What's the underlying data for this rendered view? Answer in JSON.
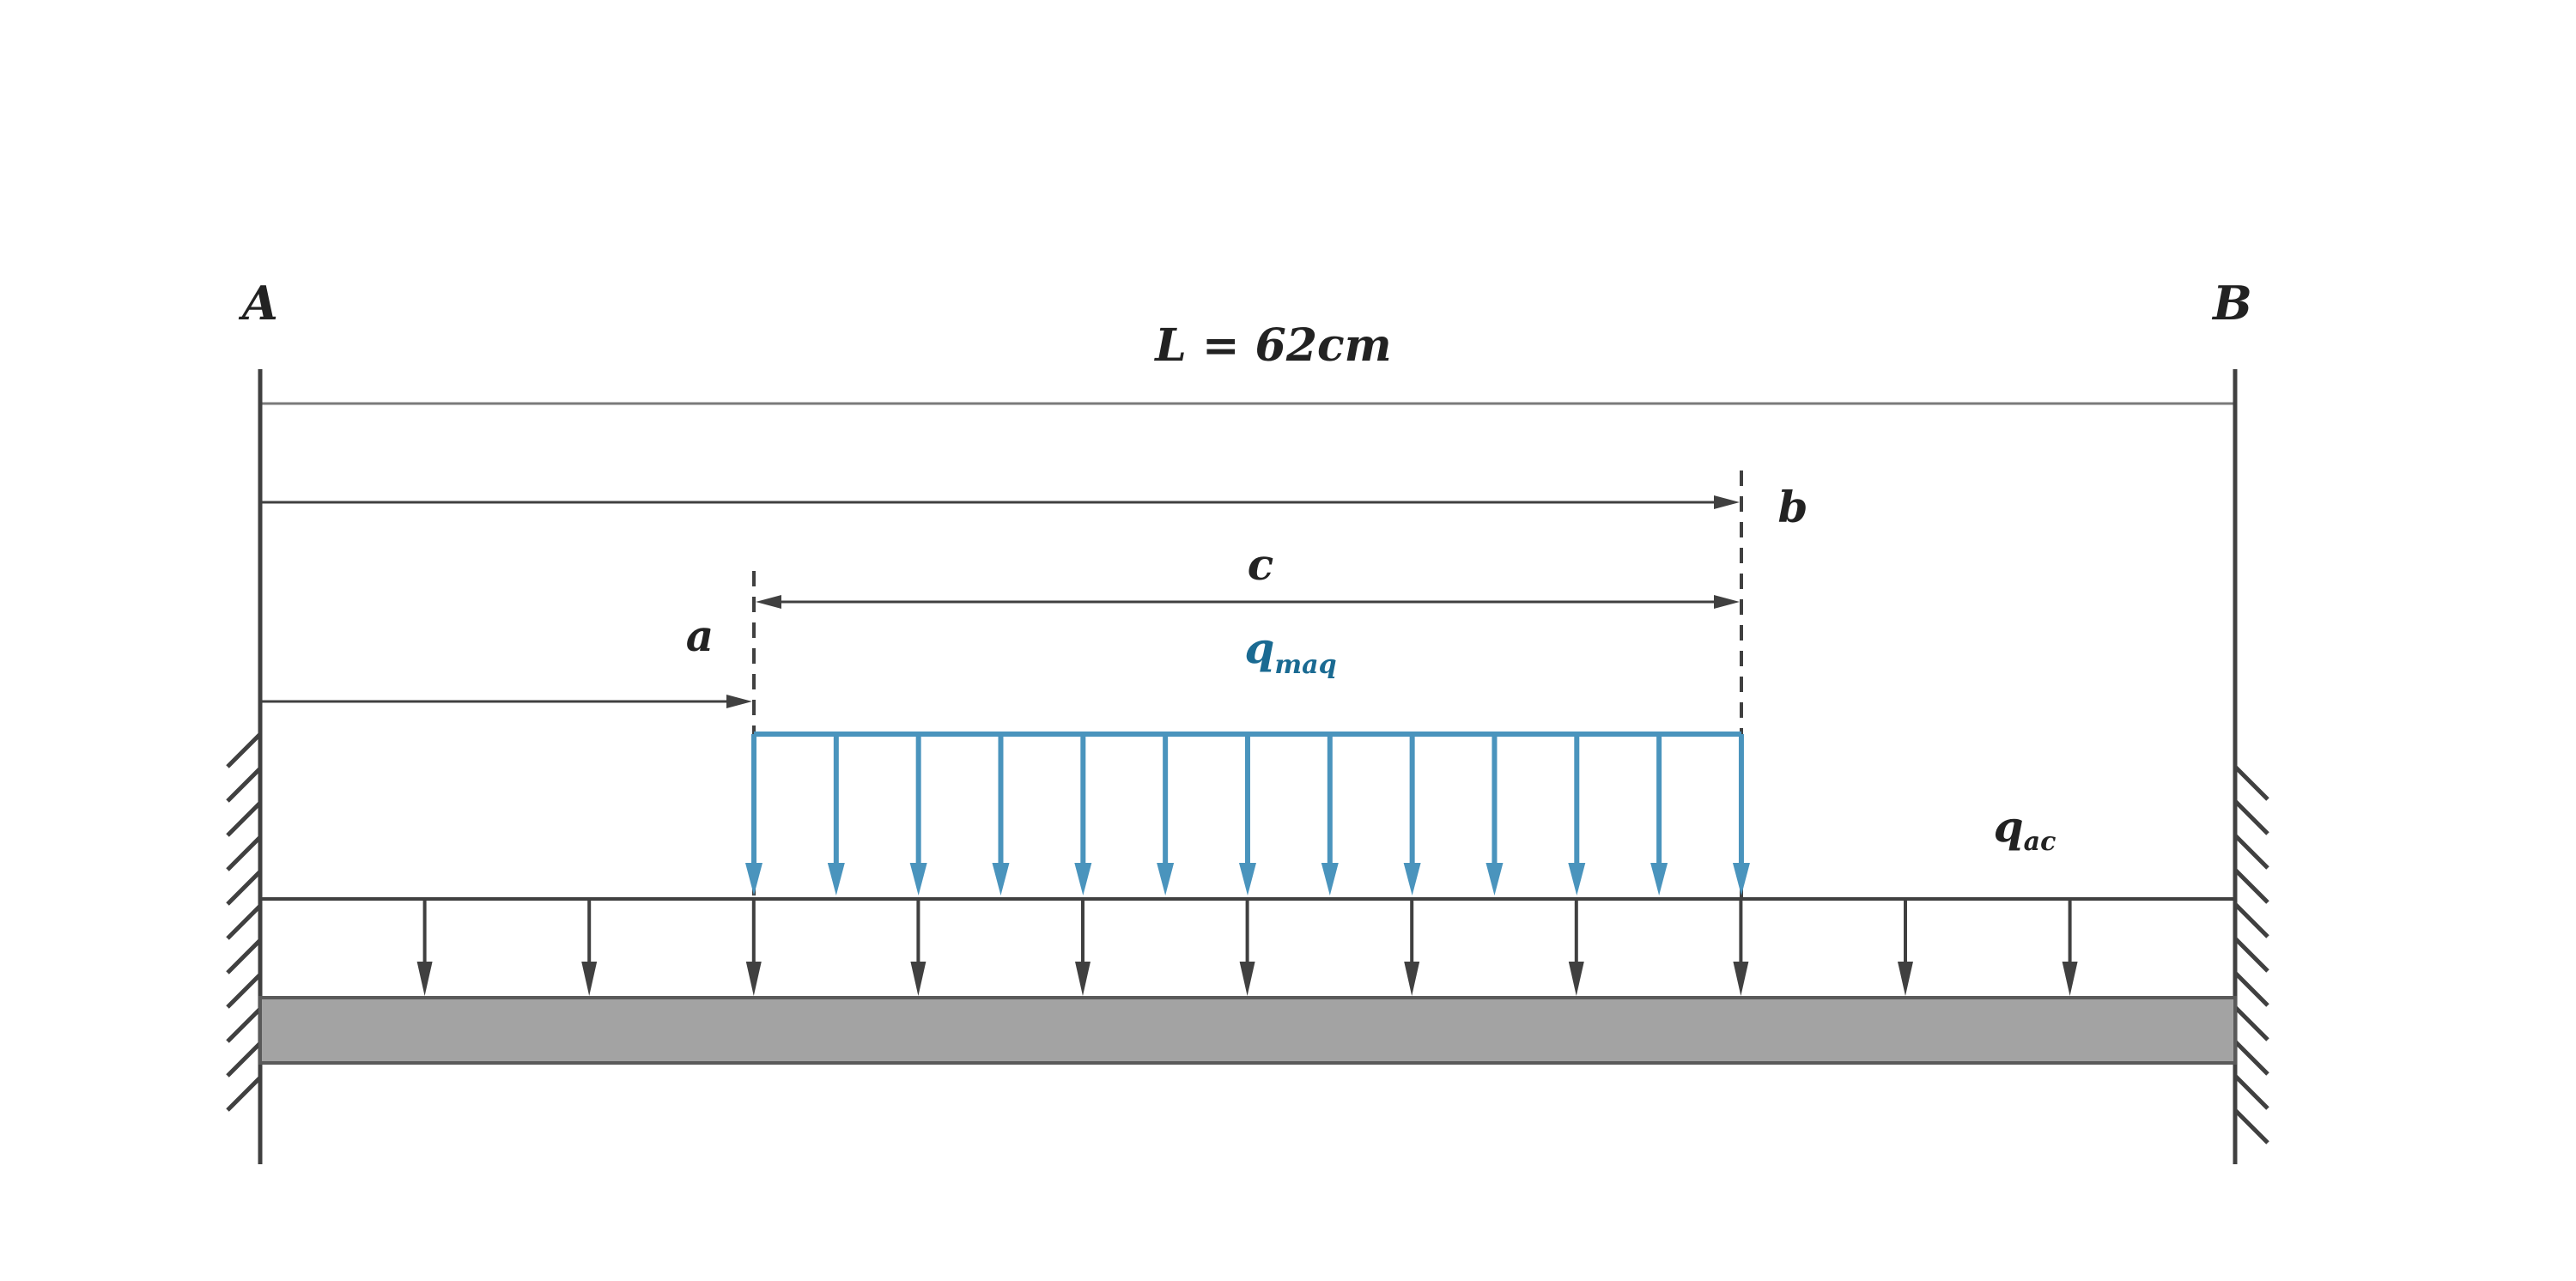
{
  "labels": {
    "support_left": "A",
    "support_right": "B",
    "span": "L = 62cm",
    "dim_a": "a",
    "dim_b": "b",
    "dim_c": "c",
    "q_machine_base": "q",
    "q_machine_sub": "maq",
    "q_ac_base": "q",
    "q_ac_sub": "ac"
  },
  "colors": {
    "structure": "#404040",
    "machine_load": "#4a94bd",
    "machine_label": "#1a6a92",
    "beam_fill": "#a3a3a3",
    "thin_line": "#7a7a7a"
  },
  "icons": {
    "left_support": "fixed-support-hatch",
    "right_support": "fixed-support-hatch"
  }
}
